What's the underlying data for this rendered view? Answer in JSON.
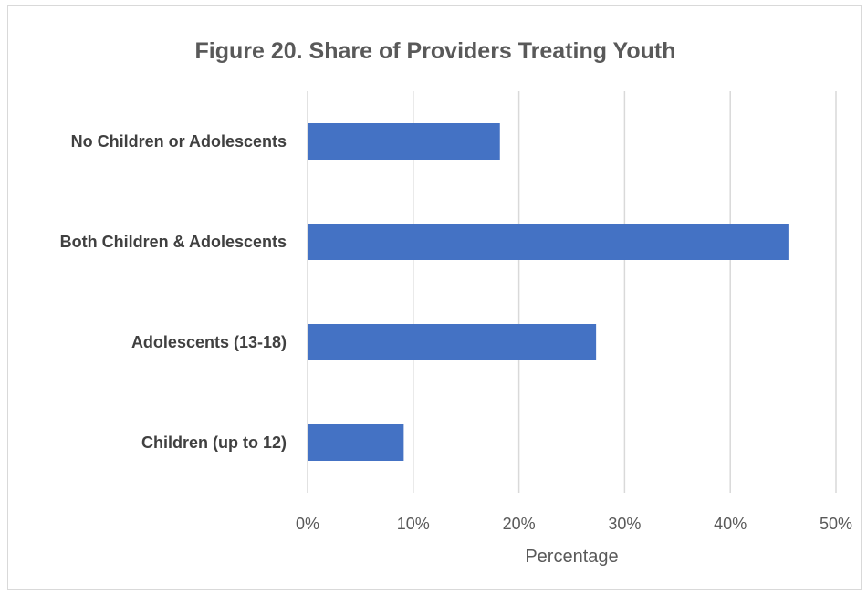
{
  "chart_data": {
    "type": "bar",
    "orientation": "horizontal",
    "title": "Figure 20. Share of Providers Treating Youth",
    "xlabel": "Percentage",
    "ylabel": "",
    "categories": [
      "No Children or Adolescents",
      "Both Children & Adolescents",
      "Adolescents (13-18)",
      "Children (up to 12)"
    ],
    "values": [
      18.2,
      45.5,
      27.3,
      9.1
    ],
    "xlim": [
      0,
      50
    ],
    "ticks": [
      "0%",
      "10%",
      "20%",
      "30%",
      "40%",
      "50%"
    ],
    "tick_values": [
      0,
      10,
      20,
      30,
      40,
      50
    ],
    "grid": "vertical",
    "legend": "none",
    "bar_color": "#4472c4",
    "grid_color": "#d9d9d9"
  }
}
